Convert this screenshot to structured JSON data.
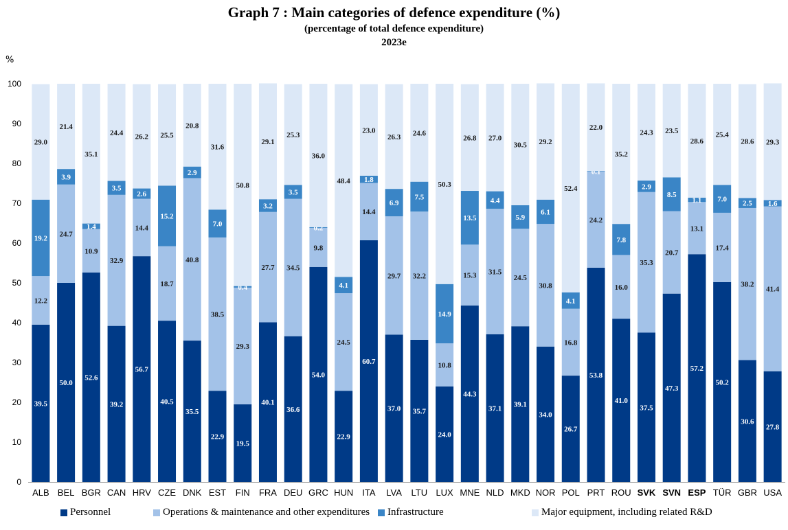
{
  "chart_data": {
    "type": "bar",
    "stacked": true,
    "title": "Graph 7 : Main categories of defence expenditure (%)",
    "subtitle": "(percentage of total defence expenditure)",
    "year": "2023e",
    "ylabel": "%",
    "ylim": [
      0,
      100
    ],
    "yticks": [
      0,
      10,
      20,
      30,
      40,
      50,
      60,
      70,
      80,
      90,
      100
    ],
    "grid": false,
    "legend_position": "bottom",
    "categories": [
      "ALB",
      "BEL",
      "BGR",
      "CAN",
      "HRV",
      "CZE",
      "DNK",
      "EST",
      "FIN",
      "FRA",
      "DEU",
      "GRC",
      "HUN",
      "ITA",
      "LVA",
      "LTU",
      "LUX",
      "MNE",
      "NLD",
      "MKD",
      "NOR",
      "POL",
      "PRT",
      "ROU",
      "SVK",
      "SVN",
      "ESP",
      "TÜR",
      "GBR",
      "USA"
    ],
    "series": [
      {
        "name": "Personnel",
        "color": "#003a87",
        "label_color": "#ffffff",
        "values": [
          39.5,
          50.0,
          52.6,
          39.2,
          56.7,
          40.5,
          35.5,
          22.9,
          19.5,
          40.1,
          36.6,
          54.0,
          22.9,
          60.7,
          37.0,
          35.7,
          24.0,
          44.3,
          37.1,
          39.1,
          34.0,
          26.7,
          53.8,
          41.0,
          37.5,
          47.3,
          57.2,
          50.2,
          30.6,
          27.8
        ]
      },
      {
        "name": "Operations & maintenance and other expenditures",
        "color": "#a3c2e8",
        "label_color": "#1a1a1a",
        "values": [
          12.2,
          24.7,
          10.9,
          32.9,
          14.4,
          18.7,
          40.8,
          38.5,
          29.3,
          27.7,
          34.5,
          9.8,
          24.5,
          14.4,
          29.7,
          32.2,
          10.8,
          15.3,
          31.5,
          24.5,
          30.8,
          16.8,
          24.2,
          16.0,
          35.3,
          20.7,
          13.1,
          17.4,
          38.2,
          41.4
        ]
      },
      {
        "name": "Infrastructure",
        "color": "#3a85c6",
        "label_color": "#ffffff",
        "values": [
          19.2,
          3.9,
          1.4,
          3.5,
          2.6,
          15.2,
          2.9,
          7.0,
          0.4,
          3.2,
          3.5,
          0.2,
          4.1,
          1.8,
          6.9,
          7.5,
          14.9,
          13.5,
          4.4,
          5.9,
          6.1,
          4.1,
          0.1,
          7.8,
          2.9,
          8.5,
          1.1,
          7.0,
          2.5,
          1.6
        ]
      },
      {
        "name": "Major equipment, including related R&D",
        "color": "#dce8f7",
        "label_color": "#1a1a1a",
        "values": [
          29.0,
          21.4,
          35.1,
          24.4,
          26.2,
          25.5,
          20.8,
          31.6,
          50.8,
          29.1,
          25.3,
          36.0,
          48.4,
          23.0,
          26.3,
          24.6,
          50.3,
          26.8,
          27.0,
          30.5,
          29.2,
          52.4,
          22.0,
          35.2,
          24.3,
          23.5,
          28.6,
          25.4,
          28.6,
          29.3
        ]
      }
    ],
    "bold_categories": [
      "SVK",
      "SVN",
      "ESP"
    ]
  }
}
